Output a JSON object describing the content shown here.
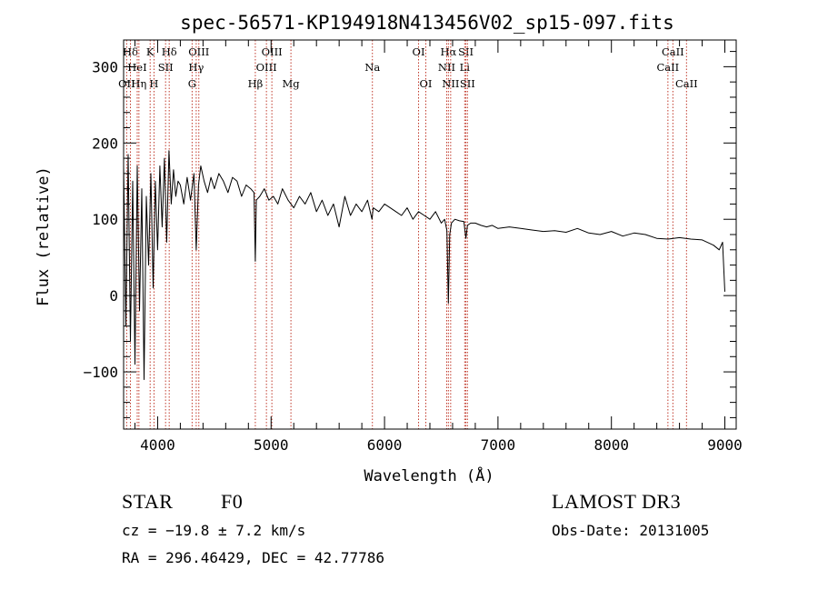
{
  "chart_data": {
    "type": "line",
    "title": "spec-56571-KP194918N413456V02_sp15-097.fits",
    "xlabel": "Wavelength (Å)",
    "ylabel": "Flux (relative)",
    "xlim": [
      3700,
      9100
    ],
    "ylim": [
      -175,
      335
    ],
    "x_ticks": [
      4000,
      5000,
      6000,
      7000,
      8000,
      9000
    ],
    "y_ticks": [
      -100,
      0,
      100,
      200,
      300
    ],
    "series": [
      {
        "name": "flux",
        "x": [
          3700,
          3720,
          3740,
          3760,
          3780,
          3800,
          3820,
          3840,
          3860,
          3880,
          3900,
          3920,
          3940,
          3960,
          3980,
          4000,
          4020,
          4040,
          4060,
          4080,
          4100,
          4120,
          4140,
          4160,
          4180,
          4200,
          4230,
          4260,
          4290,
          4320,
          4340,
          4360,
          4380,
          4410,
          4440,
          4470,
          4500,
          4540,
          4580,
          4620,
          4660,
          4700,
          4740,
          4780,
          4820,
          4850,
          4861,
          4870,
          4900,
          4940,
          4980,
          5020,
          5060,
          5100,
          5150,
          5200,
          5250,
          5300,
          5350,
          5400,
          5450,
          5500,
          5550,
          5600,
          5650,
          5700,
          5750,
          5800,
          5850,
          5890,
          5900,
          5950,
          6000,
          6050,
          6100,
          6150,
          6200,
          6250,
          6300,
          6350,
          6400,
          6450,
          6500,
          6530,
          6550,
          6563,
          6575,
          6590,
          6620,
          6660,
          6700,
          6717,
          6731,
          6760,
          6800,
          6850,
          6900,
          6950,
          7000,
          7100,
          7200,
          7300,
          7400,
          7500,
          7600,
          7700,
          7800,
          7900,
          8000,
          8100,
          8200,
          8300,
          8400,
          8500,
          8600,
          8700,
          8800,
          8900,
          8950,
          8980,
          9000
        ],
        "values": [
          170,
          -40,
          185,
          -60,
          150,
          -90,
          170,
          -20,
          140,
          -110,
          130,
          40,
          160,
          10,
          150,
          60,
          170,
          90,
          180,
          70,
          190,
          120,
          165,
          130,
          150,
          145,
          120,
          155,
          125,
          160,
          60,
          145,
          170,
          150,
          135,
          155,
          140,
          160,
          150,
          135,
          155,
          150,
          130,
          145,
          140,
          135,
          45,
          125,
          130,
          140,
          125,
          130,
          120,
          140,
          125,
          115,
          130,
          120,
          135,
          110,
          125,
          105,
          120,
          90,
          130,
          105,
          120,
          110,
          125,
          100,
          115,
          110,
          120,
          115,
          110,
          105,
          115,
          100,
          110,
          105,
          100,
          110,
          95,
          100,
          85,
          -10,
          80,
          95,
          100,
          98,
          97,
          75,
          92,
          95,
          95,
          92,
          90,
          92,
          88,
          90,
          88,
          86,
          84,
          85,
          83,
          88,
          82,
          80,
          84,
          78,
          82,
          80,
          75,
          74,
          76,
          74,
          73,
          66,
          60,
          70,
          5
        ]
      }
    ],
    "spectral_lines": [
      {
        "label": "Hδ",
        "wavelength": 3760,
        "row": 1
      },
      {
        "label": "K",
        "wavelength": 3934,
        "row": 1
      },
      {
        "label": "Hδ",
        "wavelength": 4102,
        "row": 1
      },
      {
        "label": "OIII",
        "wavelength": 4363,
        "row": 1
      },
      {
        "label": "OIII",
        "wavelength": 5007,
        "row": 1
      },
      {
        "label": "OI",
        "wavelength": 6300,
        "row": 1
      },
      {
        "label": "Hα",
        "wavelength": 6563,
        "row": 1
      },
      {
        "label": "SII",
        "wavelength": 6717,
        "row": 1
      },
      {
        "label": "CaII",
        "wavelength": 8542,
        "row": 1
      },
      {
        "label": "HeI",
        "wavelength": 3820,
        "row": 2
      },
      {
        "label": "SII",
        "wavelength": 4070,
        "row": 2
      },
      {
        "label": "Hγ",
        "wavelength": 4340,
        "row": 2
      },
      {
        "label": "OIII",
        "wavelength": 4959,
        "row": 2
      },
      {
        "label": "Na",
        "wavelength": 5893,
        "row": 2
      },
      {
        "label": "NII",
        "wavelength": 6548,
        "row": 2
      },
      {
        "label": "Li",
        "wavelength": 6707,
        "row": 2
      },
      {
        "label": "CaII",
        "wavelength": 8498,
        "row": 2
      },
      {
        "label": "OII",
        "wavelength": 3727,
        "row": 3
      },
      {
        "label": "Hη",
        "wavelength": 3835,
        "row": 3
      },
      {
        "label": "H",
        "wavelength": 3968,
        "row": 3
      },
      {
        "label": "G",
        "wavelength": 4304,
        "row": 3
      },
      {
        "label": "Hβ",
        "wavelength": 4861,
        "row": 3
      },
      {
        "label": "Mg",
        "wavelength": 5175,
        "row": 3
      },
      {
        "label": "OI",
        "wavelength": 6364,
        "row": 3
      },
      {
        "label": "NII",
        "wavelength": 6583,
        "row": 3
      },
      {
        "label": "SII",
        "wavelength": 6731,
        "row": 3
      },
      {
        "label": "CaII",
        "wavelength": 8662,
        "row": 3
      }
    ]
  },
  "info": {
    "class": "STAR",
    "subclass": "F0",
    "survey": "LAMOST DR3",
    "cz": "cz = −19.8 ± 7.2 km/s",
    "obs_date": "Obs-Date: 20131005",
    "coords": "RA = 296.46429, DEC =  42.77786"
  }
}
